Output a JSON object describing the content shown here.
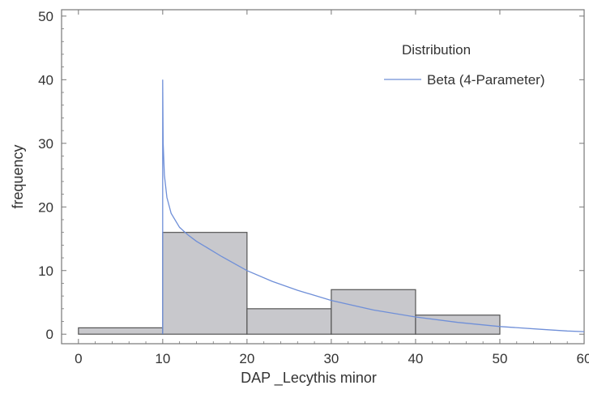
{
  "chart_data": {
    "type": "bar",
    "histogram": {
      "bins": [
        {
          "from": 0,
          "to": 10,
          "value": 1
        },
        {
          "from": 10,
          "to": 20,
          "value": 16
        },
        {
          "from": 20,
          "to": 30,
          "value": 4
        },
        {
          "from": 30,
          "to": 40,
          "value": 7
        },
        {
          "from": 40,
          "to": 50,
          "value": 3
        }
      ]
    },
    "curve": {
      "name": "Beta (4-Parameter)",
      "x": [
        10,
        10.05,
        10.2,
        10.5,
        11,
        12,
        13,
        14,
        15,
        17,
        20,
        23,
        26,
        30,
        35,
        40,
        45,
        50,
        55,
        58,
        60
      ],
      "y": [
        40,
        30,
        25,
        21.5,
        19,
        16.8,
        15.6,
        14.6,
        13.8,
        12.2,
        10.0,
        8.3,
        6.9,
        5.3,
        3.8,
        2.7,
        1.85,
        1.2,
        0.75,
        0.5,
        0.4
      ]
    },
    "xlabel": "DAP _Lecythis minor",
    "ylabel": "frequency",
    "xlim": [
      -2,
      60
    ],
    "ylim": [
      -1.5,
      51
    ],
    "xticks": [
      "0",
      "10",
      "20",
      "30",
      "40",
      "50",
      "60"
    ],
    "yticks": [
      "0",
      "10",
      "20",
      "30",
      "40",
      "50"
    ],
    "legend_title": "Distribution",
    "legend_position": "top-right",
    "grid": false,
    "colors": {
      "bar_fill": "#c8c8cc",
      "bar_stroke": "#555555",
      "curve": "#6f8fd8",
      "axis": "#777777"
    }
  }
}
